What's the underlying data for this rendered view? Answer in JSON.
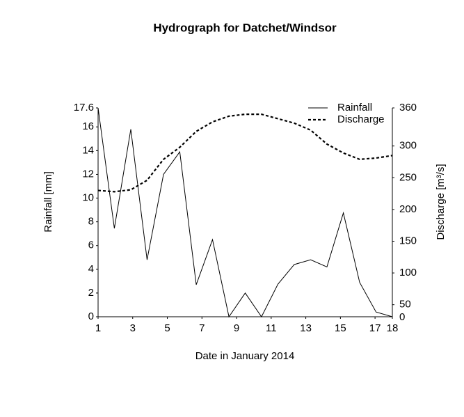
{
  "chart_data": {
    "type": "line",
    "title": "Hydrograph for Datchet/Windsor",
    "x_label": "Date in January 2014",
    "y_label": "Rainfall [mm]",
    "y2_label": "Discharge [m³/s]",
    "y2_origin_label": "0",
    "x": [
      1,
      1.94,
      2.89,
      3.83,
      4.78,
      5.72,
      6.67,
      7.61,
      8.56,
      9.5,
      10.44,
      11.39,
      12.33,
      13.28,
      14.22,
      15.17,
      16.11,
      17.06,
      18
    ],
    "xlim": [
      1,
      18
    ],
    "xticks": [
      1,
      3,
      5,
      7,
      9,
      11,
      13,
      15,
      17,
      18
    ],
    "ylim": [
      0,
      17.6
    ],
    "yticks": [
      0,
      2,
      4,
      6,
      8,
      10,
      12,
      14,
      16,
      17.6
    ],
    "y2lim": [
      31,
      360
    ],
    "y2ticks": [
      50,
      100,
      150,
      200,
      250,
      300,
      360
    ],
    "legend": "top-right",
    "series": [
      {
        "name": "Rainfall",
        "color": "#000000",
        "style": "solid",
        "values": [
          17.6,
          7.45,
          15.8,
          4.8,
          12.0,
          13.9,
          2.7,
          6.5,
          0,
          2.0,
          0,
          2.75,
          4.4,
          4.8,
          4.2,
          8.75,
          2.9,
          0.4,
          0
        ]
      },
      {
        "name": "Discharge",
        "color": "#000000",
        "style": "dashed",
        "axis": "y2",
        "values": [
          230,
          228,
          231,
          246,
          279,
          298,
          323,
          338,
          347,
          350,
          350,
          343,
          336,
          325,
          303,
          289,
          279,
          281,
          285
        ]
      }
    ]
  }
}
